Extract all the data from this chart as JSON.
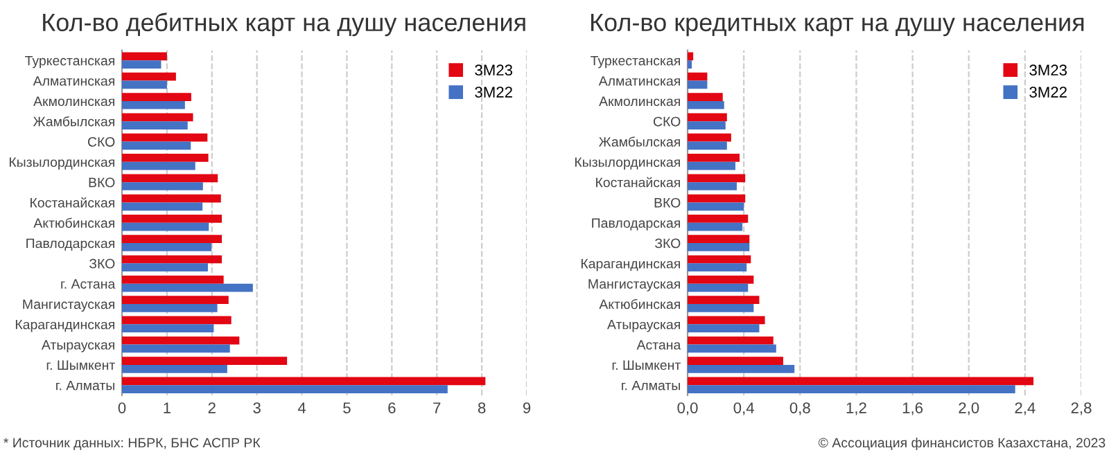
{
  "chart_data": [
    {
      "type": "bar",
      "orientation": "horizontal",
      "title": "Кол-во дебитных карт на душу населения",
      "categories": [
        "Туркестанская",
        "Алматинская",
        "Акмолинская",
        "Жамбылская",
        "СКО",
        "Кызылординская",
        "ВКО",
        "Костанайская",
        "Актюбинская",
        "Павлодарская",
        "ЗКО",
        "г. Астана",
        "Мангистауская",
        "Карагандинская",
        "Атырауская",
        "г. Шымкент",
        "г. Алматы"
      ],
      "series": [
        {
          "name": "3М23",
          "color": "#e30613",
          "values": [
            1.0,
            1.2,
            1.54,
            1.58,
            1.9,
            1.92,
            2.13,
            2.2,
            2.22,
            2.22,
            2.22,
            2.26,
            2.37,
            2.43,
            2.61,
            3.67,
            8.08
          ]
        },
        {
          "name": "3М22",
          "color": "#4472c4",
          "values": [
            0.87,
            1.0,
            1.4,
            1.46,
            1.53,
            1.63,
            1.8,
            1.79,
            1.93,
            1.99,
            1.91,
            2.91,
            2.12,
            2.04,
            2.4,
            2.34,
            7.24
          ]
        }
      ],
      "xlim": [
        0,
        9
      ],
      "xticks": [
        0,
        1,
        2,
        3,
        4,
        5,
        6,
        7,
        8,
        9
      ],
      "grid": "x",
      "legend": "top right",
      "annotations": [
        "* Источник данных: НБРК, БНС АСПР РК"
      ]
    },
    {
      "type": "bar",
      "orientation": "horizontal",
      "title": "Кол-во кредитных карт на душу населения",
      "categories": [
        "Туркестанская",
        "Алматинская",
        "Акмолинская",
        "СКО",
        "Жамбылская",
        "Кызылординская",
        "Костанайская",
        "ВКО",
        "Павлодарская",
        "ЗКО",
        "Карагандинская",
        "Мангистауская",
        "Актюбинская",
        "Атырауская",
        "Астана",
        "г. Шымкент",
        "г. Алматы"
      ],
      "series": [
        {
          "name": "3М23",
          "color": "#e30613",
          "values": [
            0.04,
            0.14,
            0.25,
            0.28,
            0.31,
            0.37,
            0.41,
            0.41,
            0.43,
            0.44,
            0.45,
            0.47,
            0.51,
            0.55,
            0.61,
            0.68,
            2.46
          ]
        },
        {
          "name": "3М22",
          "color": "#4472c4",
          "values": [
            0.03,
            0.14,
            0.26,
            0.27,
            0.28,
            0.34,
            0.35,
            0.4,
            0.39,
            0.44,
            0.42,
            0.43,
            0.47,
            0.51,
            0.63,
            0.76,
            2.33
          ]
        }
      ],
      "xlim": [
        0,
        2.8
      ],
      "xticks": [
        {
          "value": 0,
          "label": "0,0"
        },
        {
          "value": 0.4,
          "label": "0,4"
        },
        {
          "value": 0.8,
          "label": "0,8"
        },
        {
          "value": 1.2,
          "label": "1,2"
        },
        {
          "value": 1.6,
          "label": "1,6"
        },
        {
          "value": 2.0,
          "label": "2,0"
        },
        {
          "value": 2.4,
          "label": "2,4"
        },
        {
          "value": 2.8,
          "label": "2,8"
        }
      ],
      "grid": "x",
      "legend": "top right",
      "annotations": [
        "© Ассоциация финансистов Казахстана, 2023"
      ]
    }
  ]
}
